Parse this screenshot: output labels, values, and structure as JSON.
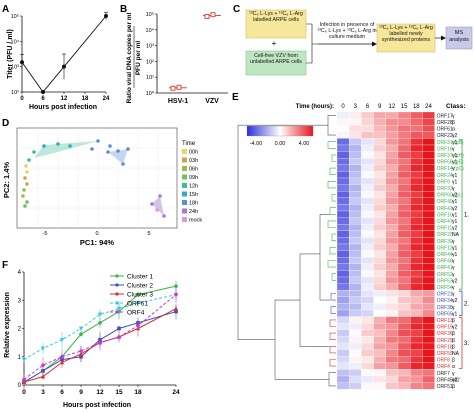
{
  "panels": {
    "A": {
      "letter": "A",
      "ylabel": "Titer (PFU / ml)",
      "xlabel": "Hours post infection",
      "y_ticks": [
        "10²",
        "10³",
        "10⁴",
        "10⁵"
      ],
      "x_ticks": [
        "0",
        "6",
        "12",
        "18",
        "24"
      ]
    },
    "B": {
      "letter": "B",
      "ylabel_line1": "Ratio viral DNA copies per ml",
      "ylabel_line2": "PFU per ml",
      "y_ticks": [
        "10⁰",
        "10¹",
        "10²",
        "10³",
        "10⁴",
        "10⁵"
      ],
      "categories": [
        "HSV-1",
        "VZV"
      ]
    },
    "C": {
      "letter": "C",
      "box1": "¹³C₆ L-Lys + ¹³C₆ L-Arg labelled ARPE cells",
      "plus": "+",
      "box2": "Cell-free VZV from unlabelled ARPE cells",
      "arrow_label": "Infection in presence of ¹³C₆ L-Lys + ¹³C₆ L-Arg in culture medium",
      "box3": "¹³C₆ L-Lys + ¹³C₆ L-Arg labelled newly synthesized proteins",
      "box4": "MS analysis"
    },
    "D": {
      "letter": "D",
      "xlabel": "PC1: 94%",
      "ylabel": "PC2: 1.4%",
      "legend_title": "Time",
      "legend": [
        {
          "label": "00h",
          "color": "#e8d36a"
        },
        {
          "label": "03h",
          "color": "#c9a44e"
        },
        {
          "label": "06h",
          "color": "#a4b84c"
        },
        {
          "label": "09h",
          "color": "#6fbf5a"
        },
        {
          "label": "12h",
          "color": "#3fbf8f"
        },
        {
          "label": "15h",
          "color": "#39a7c9"
        },
        {
          "label": "18h",
          "color": "#5b8fd6"
        },
        {
          "label": "24h",
          "color": "#a57ad3"
        },
        {
          "label": "mock",
          "color": "#d79fd0"
        }
      ]
    },
    "E": {
      "letter": "E",
      "time_label": "Time (hours):",
      "time_ticks": [
        "0",
        "3",
        "6",
        "9",
        "12",
        "15",
        "18",
        "24"
      ],
      "class_title": "Class:",
      "scale_min": "-4.00",
      "scale_mid": "0.00",
      "scale_max": "4.00",
      "cluster_labels": [
        "1.",
        "2.",
        "3."
      ]
    },
    "F": {
      "letter": "F",
      "ylabel": "Relative expression",
      "xlabel": "Hours post infection"
    }
  },
  "heatmap_rows": [
    {
      "label": "ORF17",
      "cls": "γ",
      "color": "#222222"
    },
    {
      "label": "ORF28",
      "cls": "β",
      "color": "#222222"
    },
    {
      "label": "ORF61",
      "cls": "α",
      "color": "#222222"
    },
    {
      "label": "ORF22",
      "cls": "γ2",
      "color": "#222222"
    },
    {
      "label": "ORF31 (gB)",
      "cls": "γ1",
      "color": "#3ab54a"
    },
    {
      "label": "ORF16",
      "cls": "γ",
      "color": "#3ab54a"
    },
    {
      "label": "ORF37 (gH)",
      "cls": "γ1",
      "color": "#3ab54a"
    },
    {
      "label": "ORF68 (gE)",
      "cls": "γ1",
      "color": "#3ab54a"
    },
    {
      "label": "ORF14 (gC)",
      "cls": "γ",
      "color": "#3ab54a"
    },
    {
      "label": "ORF24",
      "cls": "γ1",
      "color": "#3ab54a"
    },
    {
      "label": "ORF9",
      "cls": "γ1",
      "color": "#3ab54a"
    },
    {
      "label": "ORF33",
      "cls": "γ",
      "color": "#3ab54a"
    },
    {
      "label": "ORF60 (gL)",
      "cls": "γ2",
      "color": "#3ab54a"
    },
    {
      "label": "ORF40",
      "cls": "γ1",
      "color": "#3ab54a"
    },
    {
      "label": "ORF43",
      "cls": "γ2",
      "color": "#3ab54a"
    },
    {
      "label": "ORF10",
      "cls": "γ1",
      "color": "#3ab54a"
    },
    {
      "label": "ORF47",
      "cls": "γ1",
      "color": "#3ab54a"
    },
    {
      "label": "ORF11",
      "cls": "γ2",
      "color": "#3ab54a"
    },
    {
      "label": "ORF20",
      "cls": "NA",
      "color": "#3ab54a"
    },
    {
      "label": "ORF39",
      "cls": "γ",
      "color": "#3ab54a"
    },
    {
      "label": "ORF12",
      "cls": "γ1",
      "color": "#3ab54a"
    },
    {
      "label": "ORF44",
      "cls": "γ1",
      "color": "#3ab54a"
    },
    {
      "label": "ORF48",
      "cls": "γ",
      "color": "#3ab54a"
    },
    {
      "label": "ORF41",
      "cls": "γ",
      "color": "#3ab54a"
    },
    {
      "label": "ORF52",
      "cls": "γ",
      "color": "#3ab54a"
    },
    {
      "label": "ORF53",
      "cls": "γ2",
      "color": "#3ab54a"
    },
    {
      "label": "ORF54",
      "cls": "γ",
      "color": "#3ab54a"
    },
    {
      "label": "ORF21",
      "cls": "γ",
      "color": "#3b4fc4"
    },
    {
      "label": "ORF34",
      "cls": "γ2",
      "color": "#3b4fc4"
    },
    {
      "label": "ORF38",
      "cls": "γ",
      "color": "#3b4fc4"
    },
    {
      "label": "ORF65",
      "cls": "γ1",
      "color": "#3b4fc4"
    },
    {
      "label": "ORF13",
      "cls": "β",
      "color": "#d9302c"
    },
    {
      "label": "ORF19",
      "cls": "γ2",
      "color": "#d9302c"
    },
    {
      "label": "ORF36",
      "cls": "β",
      "color": "#d9302c"
    },
    {
      "label": "ORF29",
      "cls": "β",
      "color": "#d9302c"
    },
    {
      "label": "ORF18",
      "cls": "β",
      "color": "#d9302c"
    },
    {
      "label": "ORF59",
      "cls": "NA",
      "color": "#d9302c"
    },
    {
      "label": "ORF8",
      "cls": "β",
      "color": "#d9302c"
    },
    {
      "label": "ORF4",
      "cls": "α",
      "color": "#d9302c"
    },
    {
      "label": "ORF7",
      "cls": "γ",
      "color": "#222222"
    },
    {
      "label": "ORF45/42",
      "cls": "γ2",
      "color": "#222222"
    },
    {
      "label": "ORF51",
      "cls": "β",
      "color": "#222222"
    }
  ],
  "chart_data": [
    {
      "type": "line",
      "panel": "A",
      "x": [
        0,
        6,
        12,
        24
      ],
      "values": [
        1500,
        100,
        1000,
        100000
      ],
      "xlim": [
        0,
        24
      ],
      "ylim": [
        100,
        100000
      ],
      "yscale": "log",
      "xlabel": "Hours post infection",
      "ylabel": "Titer (PFU / ml)"
    },
    {
      "type": "scatter",
      "panel": "B",
      "categories": [
        "HSV-1",
        "VZV"
      ],
      "series": [
        {
          "name": "HSV-1",
          "values": [
            2.0,
            2.3
          ]
        },
        {
          "name": "VZV",
          "values": [
            70000,
            90000
          ]
        }
      ],
      "ylim": [
        1,
        100000
      ],
      "yscale": "log"
    },
    {
      "type": "scatter",
      "panel": "D",
      "xlabel": "PC1: 94%",
      "ylabel": "PC2: 1.4%",
      "legend": "right"
    },
    {
      "type": "line",
      "panel": "F",
      "x": [
        0,
        3,
        6,
        9,
        12,
        15,
        18,
        24
      ],
      "series": [
        {
          "name": "Cluster 1",
          "color": "#3ab54a",
          "values": [
            0.1,
            0.5,
            1.0,
            1.8,
            2.2,
            2.6,
            3.2,
            3.5
          ]
        },
        {
          "name": "Cluster 2",
          "color": "#3b4fc4",
          "values": [
            0.1,
            0.5,
            0.9,
            1.0,
            1.6,
            2.0,
            2.2,
            2.6
          ]
        },
        {
          "name": "Cluster 3",
          "color": "#d9302c",
          "values": [
            0.1,
            0.3,
            0.8,
            1.1,
            1.5,
            1.7,
            2.0,
            2.7
          ]
        },
        {
          "name": "ORF61",
          "color": "#38c7e0",
          "values": [
            0.9,
            1.3,
            1.6,
            2.0,
            2.5,
            2.7,
            2.9,
            3.2
          ]
        },
        {
          "name": "ORF4",
          "color": "#c43ad3",
          "values": [
            0.2,
            0.7,
            1.0,
            1.2,
            1.5,
            1.7,
            2.1,
            3.2
          ]
        }
      ],
      "xlim": [
        0,
        24
      ],
      "ylim": [
        0,
        4
      ],
      "xlabel": "Hours post infection",
      "ylabel": "Relative expression",
      "legend": "right"
    }
  ]
}
